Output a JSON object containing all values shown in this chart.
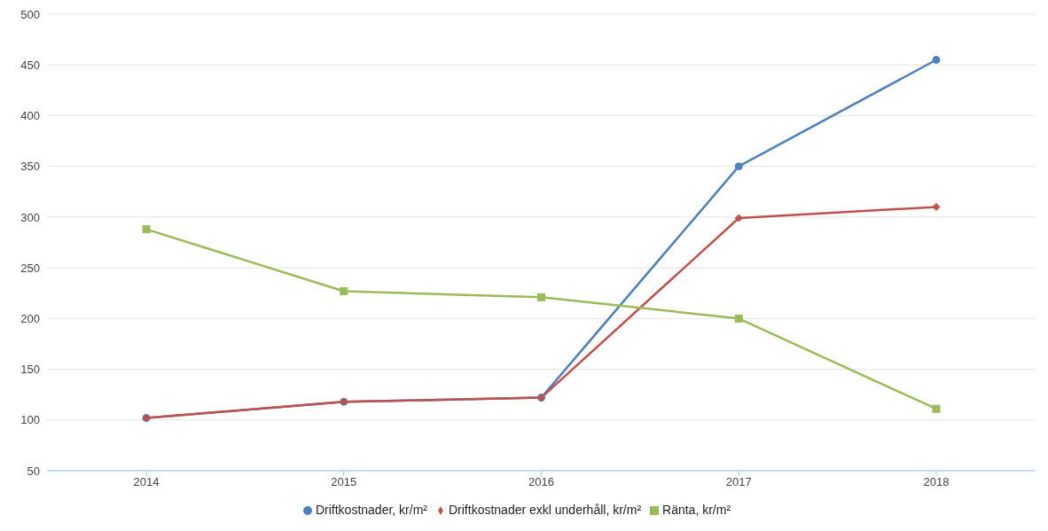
{
  "chart_data": {
    "type": "line",
    "categories": [
      "2014",
      "2015",
      "2016",
      "2017",
      "2018"
    ],
    "series": [
      {
        "name": "Driftkostnader, kr/m²",
        "color": "#4f81bd",
        "marker": "circle",
        "values": [
          102,
          118,
          122,
          350,
          455
        ]
      },
      {
        "name": "Driftkostnader exkl underhåll, kr/m²",
        "color": "#c0504d",
        "marker": "diamond",
        "values": [
          102,
          118,
          122,
          299,
          310
        ]
      },
      {
        "name": "Ränta, kr/m²",
        "color": "#9bbb59",
        "marker": "square",
        "values": [
          288,
          227,
          221,
          200,
          111
        ]
      }
    ],
    "ylim": [
      50,
      500
    ],
    "yticks": [
      50,
      100,
      150,
      200,
      250,
      300,
      350,
      400,
      450,
      500
    ],
    "grid": "y",
    "legend": "bottom"
  }
}
